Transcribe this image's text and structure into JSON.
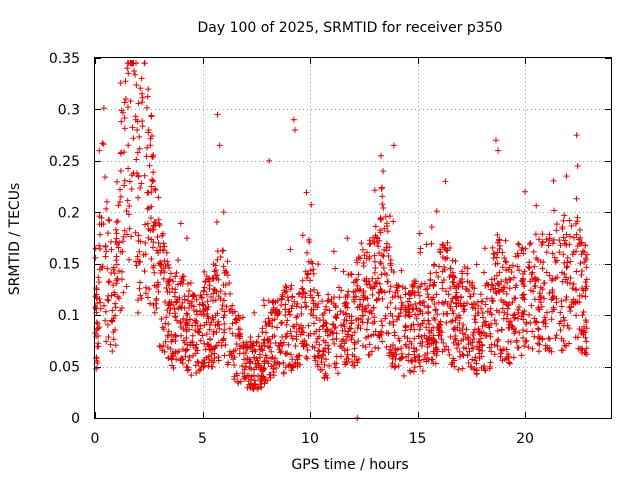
{
  "chart_data": {
    "type": "scatter",
    "title": "Day 100 of 2025, SRMTID for receiver p350",
    "xlabel": "GPS time / hours",
    "ylabel": "SRMTID / TECUs",
    "xlim": [
      0,
      24
    ],
    "ylim": [
      0,
      0.35
    ],
    "x_ticks": [
      0,
      5,
      10,
      15,
      20
    ],
    "x_tick_labels": [
      "0",
      "5",
      "10",
      "15",
      "20"
    ],
    "y_ticks": [
      0,
      0.05,
      0.1,
      0.15,
      0.2,
      0.25,
      0.3,
      0.35
    ],
    "y_tick_labels": [
      "0",
      "0.05",
      "0.1",
      "0.15",
      "0.2",
      "0.25",
      "0.3",
      "0.35"
    ],
    "grid": true,
    "marker": "plus",
    "marker_color": "#e00000",
    "series_summary": [
      {
        "x": 0.0,
        "y": 0.08
      },
      {
        "x": 0.15,
        "y": 0.09
      },
      {
        "x": 0.3,
        "y": 0.2
      },
      {
        "x": 0.4,
        "y": 0.22
      },
      {
        "x": 0.5,
        "y": 0.15
      },
      {
        "x": 0.7,
        "y": 0.13
      },
      {
        "x": 0.9,
        "y": 0.1
      },
      {
        "x": 1.0,
        "y": 0.15
      },
      {
        "x": 1.2,
        "y": 0.2
      },
      {
        "x": 1.4,
        "y": 0.22
      },
      {
        "x": 1.6,
        "y": 0.3
      },
      {
        "x": 1.75,
        "y": 0.33
      },
      {
        "x": 2.0,
        "y": 0.2
      },
      {
        "x": 2.3,
        "y": 0.25
      },
      {
        "x": 2.6,
        "y": 0.2
      },
      {
        "x": 2.9,
        "y": 0.15
      },
      {
        "x": 3.2,
        "y": 0.12
      },
      {
        "x": 3.6,
        "y": 0.09
      },
      {
        "x": 4.0,
        "y": 0.1
      },
      {
        "x": 4.5,
        "y": 0.08
      },
      {
        "x": 5.0,
        "y": 0.09
      },
      {
        "x": 5.5,
        "y": 0.1
      },
      {
        "x": 6.0,
        "y": 0.12
      },
      {
        "x": 6.5,
        "y": 0.07
      },
      {
        "x": 7.0,
        "y": 0.06
      },
      {
        "x": 7.5,
        "y": 0.05
      },
      {
        "x": 8.0,
        "y": 0.07
      },
      {
        "x": 8.5,
        "y": 0.08
      },
      {
        "x": 9.0,
        "y": 0.09
      },
      {
        "x": 9.5,
        "y": 0.08
      },
      {
        "x": 10.0,
        "y": 0.12
      },
      {
        "x": 10.5,
        "y": 0.07
      },
      {
        "x": 11.0,
        "y": 0.08
      },
      {
        "x": 11.5,
        "y": 0.09
      },
      {
        "x": 12.0,
        "y": 0.1
      },
      {
        "x": 12.5,
        "y": 0.11
      },
      {
        "x": 13.0,
        "y": 0.12
      },
      {
        "x": 13.4,
        "y": 0.15
      },
      {
        "x": 13.8,
        "y": 0.1
      },
      {
        "x": 14.3,
        "y": 0.08
      },
      {
        "x": 14.8,
        "y": 0.09
      },
      {
        "x": 15.3,
        "y": 0.09
      },
      {
        "x": 15.8,
        "y": 0.1
      },
      {
        "x": 16.3,
        "y": 0.12
      },
      {
        "x": 16.8,
        "y": 0.09
      },
      {
        "x": 17.3,
        "y": 0.1
      },
      {
        "x": 17.8,
        "y": 0.08
      },
      {
        "x": 18.3,
        "y": 0.09
      },
      {
        "x": 18.7,
        "y": 0.12
      },
      {
        "x": 19.2,
        "y": 0.1
      },
      {
        "x": 19.7,
        "y": 0.11
      },
      {
        "x": 20.2,
        "y": 0.12
      },
      {
        "x": 20.7,
        "y": 0.12
      },
      {
        "x": 21.2,
        "y": 0.12
      },
      {
        "x": 21.7,
        "y": 0.13
      },
      {
        "x": 22.2,
        "y": 0.14
      },
      {
        "x": 22.6,
        "y": 0.12
      },
      {
        "x": 22.9,
        "y": 0.11
      }
    ],
    "spikes": [
      {
        "x": 0.2,
        "y": 0.26
      },
      {
        "x": 1.5,
        "y": 0.34
      },
      {
        "x": 1.55,
        "y": 0.335
      },
      {
        "x": 1.9,
        "y": 0.29
      },
      {
        "x": 2.5,
        "y": 0.28
      },
      {
        "x": 5.7,
        "y": 0.295
      },
      {
        "x": 5.8,
        "y": 0.265
      },
      {
        "x": 8.1,
        "y": 0.25
      },
      {
        "x": 9.25,
        "y": 0.29
      },
      {
        "x": 9.3,
        "y": 0.28
      },
      {
        "x": 13.3,
        "y": 0.255
      },
      {
        "x": 13.4,
        "y": 0.24
      },
      {
        "x": 13.9,
        "y": 0.265
      },
      {
        "x": 16.3,
        "y": 0.23
      },
      {
        "x": 18.65,
        "y": 0.27
      },
      {
        "x": 18.75,
        "y": 0.26
      },
      {
        "x": 20.0,
        "y": 0.22
      },
      {
        "x": 22.4,
        "y": 0.275
      },
      {
        "x": 22.45,
        "y": 0.245
      },
      {
        "x": 12.2,
        "y": 0.0
      }
    ],
    "noise_seed": 100,
    "points_per_hour": 100
  }
}
